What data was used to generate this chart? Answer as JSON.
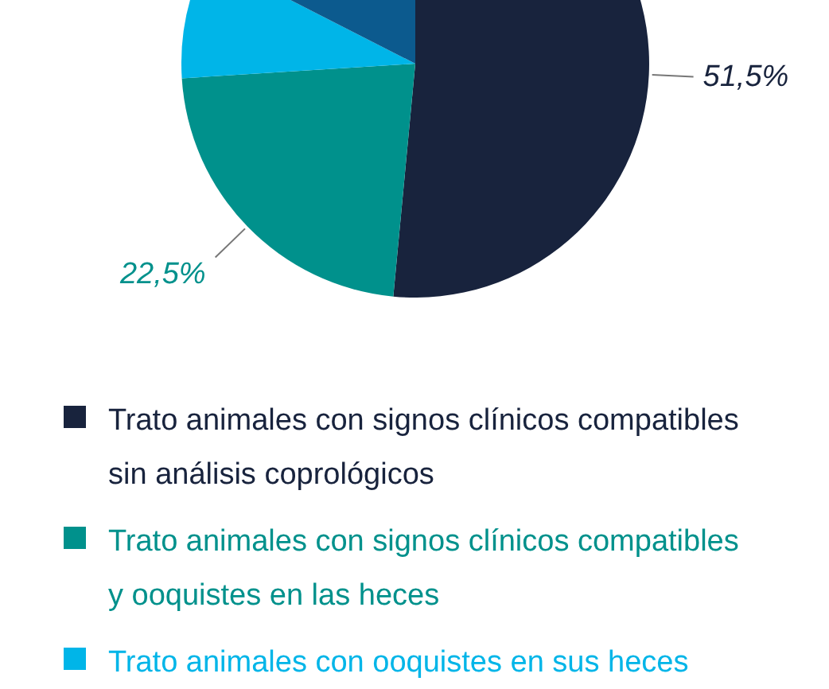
{
  "chart_data": {
    "type": "pie",
    "categories": [
      "Trato animales con signos clínicos compatibles sin análisis coprológicos",
      "Trato animales con signos clínicos compatibles y ooquistes en las heces",
      "Trato animales con ooquistes en sus heces",
      null
    ],
    "values": [
      51.5,
      22.5,
      8.5,
      17.5
    ],
    "colors": [
      "#18233d",
      "#00918c",
      "#00b5e8",
      "#0c5a8e"
    ],
    "value_labels": [
      "51,5%",
      "22,5%",
      null,
      null
    ],
    "legend": "bottom"
  }
}
